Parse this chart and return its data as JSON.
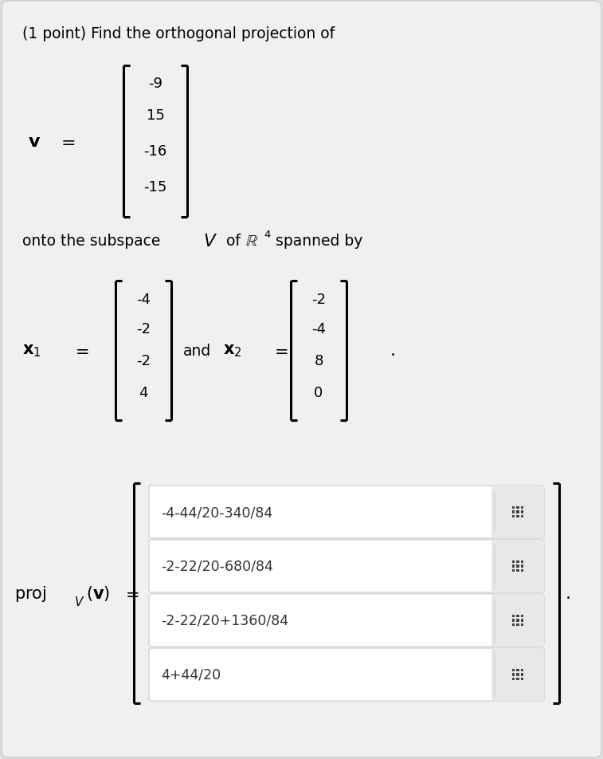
{
  "outer_bg": "#e0e0e0",
  "inner_bg": "#f0f0f0",
  "title_text": "(1 point) Find the orthogonal projection of",
  "v_values": [
    "-9",
    "15",
    "-16",
    "-15"
  ],
  "x1_values": [
    "-4",
    "-2",
    "-2",
    "4"
  ],
  "x2_values": [
    "-2",
    "-4",
    "8",
    "0"
  ],
  "answer_rows": [
    "-4-44/20-340/84",
    "-2-22/20-680/84",
    "-2-22/20+1360/84",
    "4+44/20"
  ],
  "box_bg": "#ffffff",
  "box_border": "#cccccc",
  "icon_bg": "#e8e8e8",
  "grid_icon_color": "#444444",
  "font_size_title": 13.5,
  "font_size_matrix": 13,
  "font_size_answer": 12.5,
  "font_size_proj": 15
}
